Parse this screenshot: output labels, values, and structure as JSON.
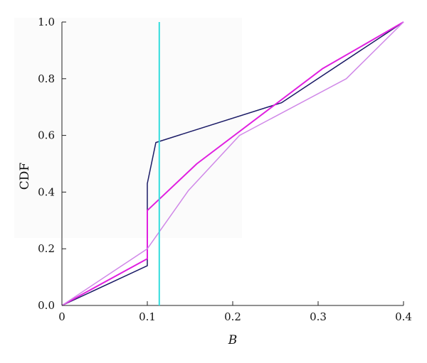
{
  "chart_data": {
    "type": "line",
    "xlabel": "B",
    "ylabel": "CDF",
    "xlim": [
      0,
      0.4
    ],
    "ylim": [
      0,
      1.0
    ],
    "x_ticks": [
      "0",
      "0.1",
      "0.2",
      "0.3",
      "0.4"
    ],
    "x_tick_values": [
      0,
      0.1,
      0.2,
      0.3,
      0.4
    ],
    "y_ticks": [
      "0.0",
      "0.2",
      "0.4",
      "0.6",
      "0.8",
      "1.0"
    ],
    "y_tick_values": [
      0,
      0.2,
      0.4,
      0.6,
      0.8,
      1.0
    ],
    "grid": false,
    "legend": "none",
    "series": [
      {
        "color": "#1a1a66",
        "points": [
          [
            0,
            0
          ],
          [
            0.1,
            0.14
          ],
          [
            0.1,
            0.43
          ],
          [
            0.11,
            0.575
          ],
          [
            0.257,
            0.715
          ],
          [
            0.4,
            1.0
          ]
        ]
      },
      {
        "color": "#e020e0",
        "points": [
          [
            0,
            0
          ],
          [
            0.1,
            0.165
          ],
          [
            0.1,
            0.335
          ],
          [
            0.158,
            0.5
          ],
          [
            0.305,
            0.835
          ],
          [
            0.4,
            1.0
          ]
        ]
      },
      {
        "color": "#d088e8",
        "points": [
          [
            0,
            0
          ],
          [
            0.1,
            0.2
          ],
          [
            0.148,
            0.405
          ],
          [
            0.208,
            0.6
          ],
          [
            0.333,
            0.8
          ],
          [
            0.4,
            1.0
          ]
        ]
      }
    ],
    "vertical_line": {
      "x": 0.114,
      "color": "#33dddd"
    }
  }
}
